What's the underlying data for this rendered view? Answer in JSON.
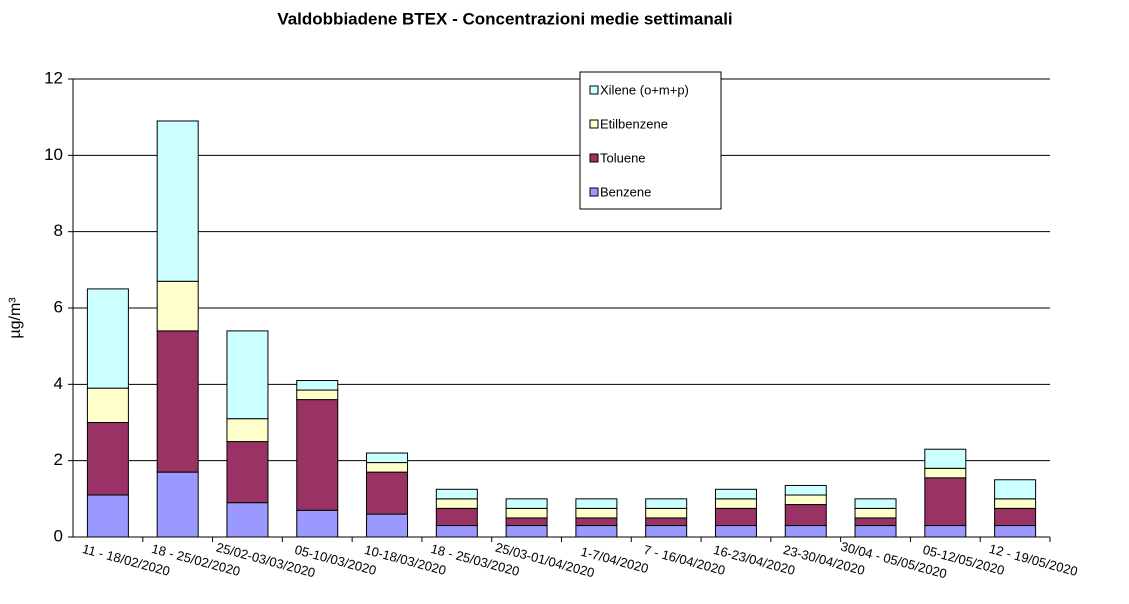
{
  "chart_data": {
    "type": "stacked_bar",
    "title": "Valdobbiadene BTEX - Concentrazioni medie settimanali",
    "y_label": "µg/m³",
    "categories": [
      "11 - 18/02/2020",
      "18 - 25/02/2020",
      "25/02-03/03/2020",
      "05-10/03/2020",
      "10-18/03/2020",
      "18 - 25/03/2020",
      "25/03-01/04/2020",
      "1-7/04/2020",
      "7 - 16/04/2020",
      "16-23/04/2020",
      "23-30/04/2020",
      "30/04 - 05/05/2020",
      "05-12/05/2020",
      "12 - 19/05/2020"
    ],
    "series": [
      {
        "name": "Benzene",
        "color": "#9999ff",
        "values": [
          1.1,
          1.7,
          0.9,
          0.7,
          0.6,
          0.3,
          0.3,
          0.3,
          0.3,
          0.3,
          0.3,
          0.3,
          0.3,
          0.3
        ]
      },
      {
        "name": "Toluene",
        "color": "#993366",
        "values": [
          1.9,
          3.7,
          1.6,
          2.9,
          1.1,
          0.45,
          0.2,
          0.2,
          0.2,
          0.45,
          0.55,
          0.2,
          1.25,
          0.45
        ]
      },
      {
        "name": "Etilbenzene",
        "color": "#ffffcc",
        "values": [
          0.9,
          1.3,
          0.6,
          0.25,
          0.25,
          0.25,
          0.25,
          0.25,
          0.25,
          0.25,
          0.25,
          0.25,
          0.25,
          0.25
        ]
      },
      {
        "name": "Xilene (o+m+p)",
        "color": "#ccffff",
        "values": [
          2.6,
          4.2,
          2.3,
          0.25,
          0.25,
          0.25,
          0.25,
          0.25,
          0.25,
          0.25,
          0.25,
          0.25,
          0.5,
          0.5
        ]
      }
    ],
    "ylim": [
      0,
      12
    ],
    "yticks": [
      0,
      2,
      4,
      6,
      8,
      10,
      12
    ],
    "grid": true
  }
}
